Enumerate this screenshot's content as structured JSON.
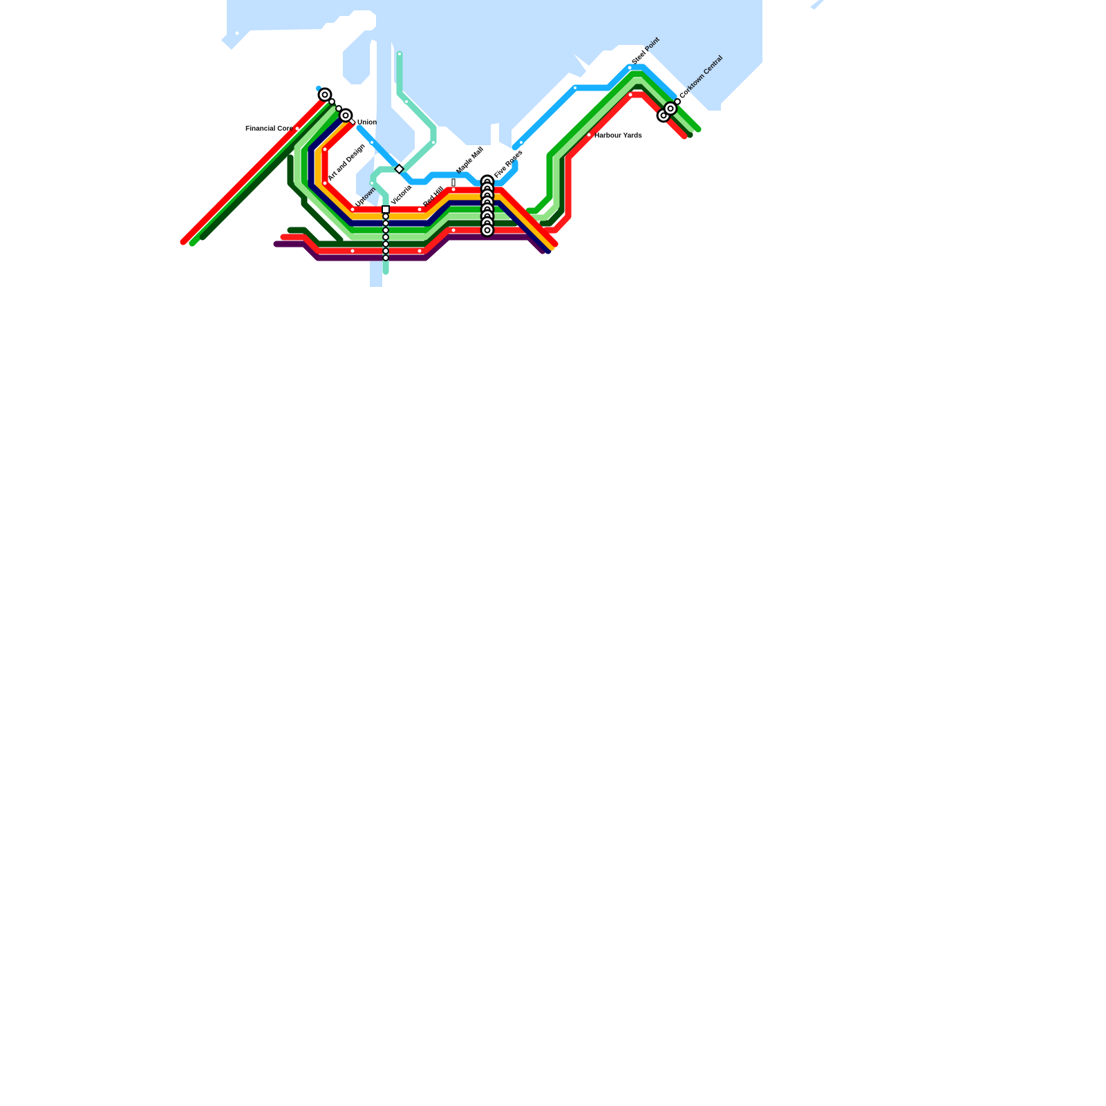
{
  "colors": {
    "water": "#c2e0ff",
    "red": "#ff0000",
    "red_alt": "#ff1a1a",
    "orange": "#ffb700",
    "navy": "#000066",
    "green": "#07b013",
    "light_green": "#8fe384",
    "dark_green": "#004a0a",
    "purple": "#520052",
    "light_blue": "#16b0ff",
    "teal": "#6fdbbf"
  },
  "stations": [
    {
      "name": "Financial Core"
    },
    {
      "name": "Union"
    },
    {
      "name": "Art and Design"
    },
    {
      "name": "Uptown"
    },
    {
      "name": "Victoria"
    },
    {
      "name": "Red Hill"
    },
    {
      "name": "Maple Mall"
    },
    {
      "name": "Five Roses"
    },
    {
      "name": "Steel Point"
    },
    {
      "name": "Harbour Yards"
    },
    {
      "name": "Corktown Central"
    }
  ]
}
